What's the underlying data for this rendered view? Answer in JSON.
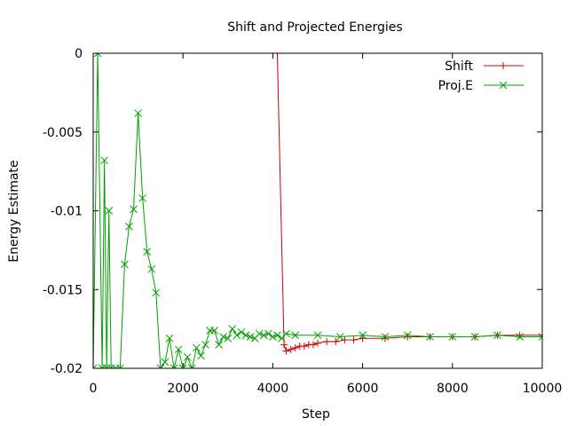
{
  "chart_data": {
    "type": "line",
    "title": "Shift and Projected Energies",
    "xlabel": "Step",
    "ylabel": "Energy Estimate",
    "xlim": [
      0,
      10000
    ],
    "ylim": [
      -0.02,
      0
    ],
    "x_ticks": [
      "0",
      "2000",
      "4000",
      "6000",
      "8000",
      "10000"
    ],
    "y_ticks": [
      "0",
      "-0.005",
      "-0.01",
      "-0.015",
      "-0.02"
    ],
    "legend_position": "top-right",
    "grid": false,
    "series": [
      {
        "name": "Shift",
        "color": "#d00000",
        "marker": "plus",
        "x": [
          100,
          4100,
          4250,
          4300,
          4400,
          4500,
          4600,
          4700,
          4800,
          4900,
          5000,
          5200,
          5400,
          5600,
          5800,
          6000,
          6500,
          7000,
          7500,
          8000,
          8500,
          9000,
          9500,
          10000
        ],
        "y": [
          0,
          0,
          -0.0185,
          -0.0189,
          -0.0188,
          -0.0187,
          -0.0186,
          -0.0186,
          -0.0185,
          -0.0185,
          -0.0184,
          -0.0183,
          -0.0183,
          -0.0182,
          -0.0182,
          -0.0181,
          -0.0181,
          -0.018,
          -0.018,
          -0.018,
          -0.018,
          -0.0179,
          -0.0179,
          -0.0179
        ]
      },
      {
        "name": "Proj.E",
        "color": "#00a000",
        "marker": "cross",
        "x": [
          0,
          100,
          200,
          250,
          300,
          350,
          400,
          500,
          600,
          700,
          800,
          900,
          1000,
          1100,
          1200,
          1300,
          1400,
          1500,
          1600,
          1700,
          1800,
          1900,
          2000,
          2100,
          2200,
          2300,
          2400,
          2500,
          2600,
          2700,
          2800,
          2900,
          3000,
          3100,
          3200,
          3300,
          3400,
          3500,
          3600,
          3700,
          3800,
          3900,
          4000,
          4100,
          4200,
          4300,
          4500,
          5000,
          5500,
          6000,
          6500,
          7000,
          7500,
          8000,
          8500,
          9000,
          9500,
          10000
        ],
        "y": [
          -0.02,
          0,
          -0.02,
          -0.0068,
          -0.02,
          -0.01,
          -0.02,
          -0.02,
          -0.02,
          -0.0134,
          -0.011,
          -0.0099,
          -0.0038,
          -0.0092,
          -0.0126,
          -0.0137,
          -0.0152,
          -0.02,
          -0.0196,
          -0.0181,
          -0.02,
          -0.0188,
          -0.02,
          -0.0193,
          -0.02,
          -0.0187,
          -0.0192,
          -0.0185,
          -0.0176,
          -0.0176,
          -0.0185,
          -0.018,
          -0.0181,
          -0.0175,
          -0.0179,
          -0.0177,
          -0.0179,
          -0.018,
          -0.0181,
          -0.0178,
          -0.0179,
          -0.0178,
          -0.018,
          -0.0179,
          -0.0181,
          -0.0178,
          -0.0179,
          -0.0179,
          -0.018,
          -0.0179,
          -0.018,
          -0.0179,
          -0.018,
          -0.018,
          -0.018,
          -0.0179,
          -0.018,
          -0.018
        ]
      }
    ]
  }
}
